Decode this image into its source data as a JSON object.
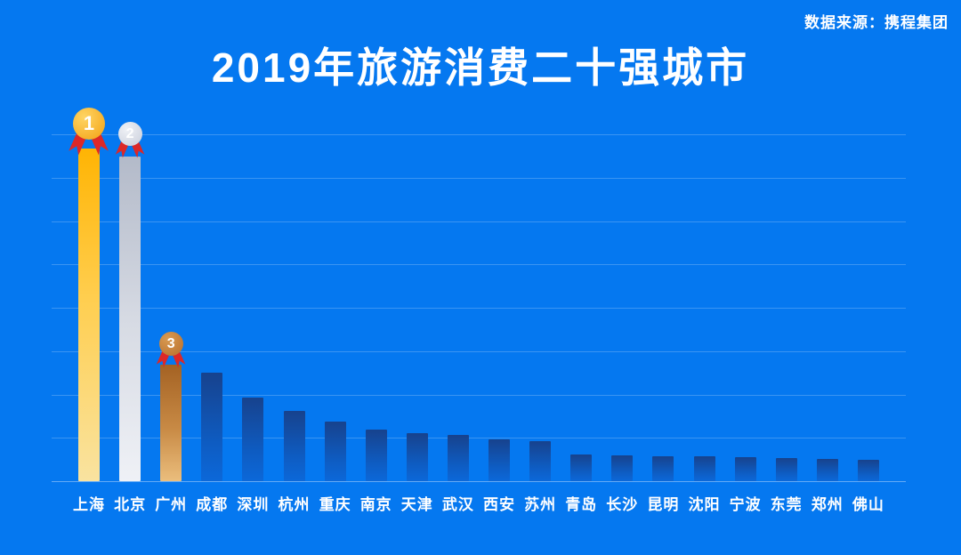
{
  "header": {
    "title": "2019年旅游消费二十强城市",
    "source": "数据来源：携程集团"
  },
  "theme": {
    "background": "#0578F0",
    "title_color": "#FFFFFF",
    "text_color": "#FFFFFF",
    "gridline_color": "rgba(255,255,255,0.22)",
    "baseline_color": "rgba(255,255,255,0.38)",
    "ribbon_red": "#DC2828",
    "medal_gold": "#F2A113",
    "medal_gold_ring": "#FFD564",
    "medal_silver": "#C9CEDA",
    "medal_silver_ring": "#EFF1F6",
    "medal_bronze": "#B86E2B",
    "medal_bronze_ring": "#D89A52"
  },
  "chart_data": {
    "type": "bar",
    "title": "2019年旅游消费二十强城市",
    "source": "数据来源：携程集团",
    "categories": [
      "上海",
      "北京",
      "广州",
      "成都",
      "深圳",
      "杭州",
      "重庆",
      "南京",
      "天津",
      "武汉",
      "西安",
      "苏州",
      "青岛",
      "长沙",
      "昆明",
      "沈阳",
      "宁波",
      "东莞",
      "郑州",
      "佛山"
    ],
    "values": [
      100,
      97.5,
      35,
      32.5,
      25,
      21,
      18,
      15.5,
      14.5,
      14,
      12.5,
      12,
      8,
      7.8,
      7.6,
      7.5,
      7.1,
      6.9,
      6.8,
      6.4
    ],
    "value_note": "relative index (Shanghai = 100); chart displays no numeric axis labels",
    "xlabel": "",
    "ylabel": "",
    "ylim": [
      0,
      104
    ],
    "grid": true,
    "gridline_intervals": 8,
    "legend": "none",
    "medals": [
      "1",
      "2",
      "3"
    ],
    "bar_palette": {
      "rank1": [
        "#FFB403",
        "#F9E3A0"
      ],
      "rank2": [
        "#B3BAC9",
        "#EFF1F6"
      ],
      "rank3": [
        "#A46223",
        "#EBBE7D"
      ],
      "others": [
        "#17428D",
        "#0C68D9"
      ]
    }
  }
}
